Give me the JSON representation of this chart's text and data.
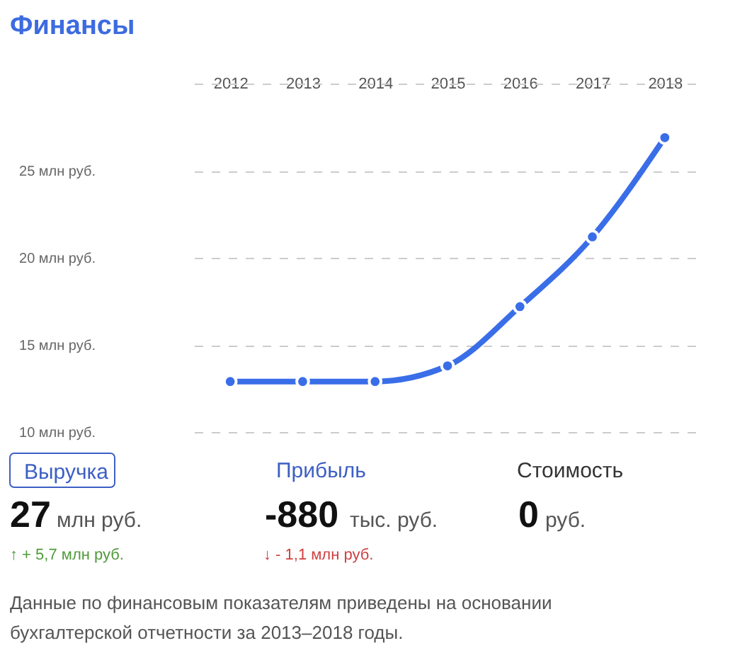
{
  "chart_data": {
    "type": "line",
    "title": "Финансы",
    "categories": [
      "2012",
      "2013",
      "2014",
      "2015",
      "2016",
      "2017",
      "2018"
    ],
    "series": [
      {
        "color": "#3a6ee8",
        "values": [
          12.9,
          12.9,
          12.9,
          13.8,
          17.2,
          21.2,
          26.9
        ]
      }
    ],
    "ylim": [
      10,
      30
    ],
    "yticks": [
      {
        "value": 10,
        "label": "10 млн руб."
      },
      {
        "value": 15,
        "label": "15 млн руб."
      },
      {
        "value": 20,
        "label": "20 млн руб."
      },
      {
        "value": 25,
        "label": "25 млн руб."
      }
    ],
    "grid": "y",
    "marker": "circle",
    "line_style": "solid",
    "annotations": [
      "Выручка",
      "27",
      "млн руб.",
      "↑ + 5,7 млн руб.",
      "Прибыль",
      "-880",
      "тыс. руб.",
      "↓ - 1,1 млн руб.",
      "Стоимость",
      "0",
      "руб.",
      "Данные по финансовым показателям приведены на основании бухгалтерской отчетности за 2013–2018 годы."
    ]
  }
}
